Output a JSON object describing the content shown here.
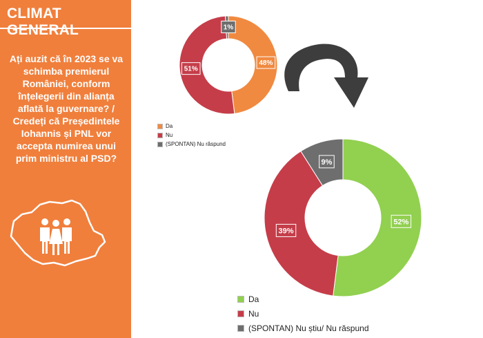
{
  "header": {
    "title": "CLIMAT GENERAL"
  },
  "question": "Ați auzit că în 2023 se va schimba premierul României, conform înțelegerii din alianța aflată la guvernare? / Credeți că Președintele Iohannis și PNL vor accepta numirea unui prim ministru al PSD?",
  "chart_data": [
    {
      "type": "pie",
      "title": "",
      "series": [
        {
          "label": "Da",
          "value": 48,
          "display": "48%",
          "color": "#f08a40"
        },
        {
          "label": "Nu",
          "value": 51,
          "display": "51%",
          "color": "#c53d49"
        },
        {
          "label": "(SPONTAN) Nu răspund",
          "value": 1,
          "display": "1%",
          "color": "#6e6e6e"
        }
      ],
      "legend": "bottom-left"
    },
    {
      "type": "pie",
      "title": "",
      "series": [
        {
          "label": "Da",
          "value": 52,
          "display": "52%",
          "color": "#92d050"
        },
        {
          "label": "Nu",
          "value": 39,
          "display": "39%",
          "color": "#c53d49"
        },
        {
          "label": "(SPONTAN) Nu știu/ Nu răspund",
          "value": 9,
          "display": "9%",
          "color": "#6e6e6e"
        }
      ],
      "legend": "bottom-left"
    }
  ]
}
